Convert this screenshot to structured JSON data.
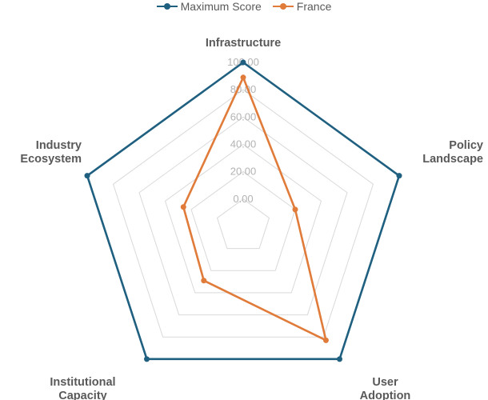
{
  "chart_data": {
    "type": "radar",
    "categories": [
      "Infrastructure",
      "Policy Landscape",
      "User Adoption",
      "Institutional Capacity",
      "Industry Ecosystem"
    ],
    "category_lines": [
      [
        "Infrastructure"
      ],
      [
        "Policy",
        "Landscape"
      ],
      [
        "User",
        "Adoption"
      ],
      [
        "Institutional",
        "Capacity"
      ],
      [
        "Industry",
        "Ecosystem"
      ]
    ],
    "radial_ticks": [
      "0.00",
      "20.00",
      "40.00",
      "60.00",
      "80.00",
      "100.00"
    ],
    "rlim": [
      -20,
      100
    ],
    "grid": true,
    "legend_position": "top",
    "series": [
      {
        "name": "Maximum Score",
        "color": "#1f5f7f",
        "values": [
          100,
          100,
          100,
          100,
          100
        ]
      },
      {
        "name": "France",
        "color": "#e07b3a",
        "values": [
          89,
          20,
          83,
          29,
          26
        ]
      }
    ]
  }
}
